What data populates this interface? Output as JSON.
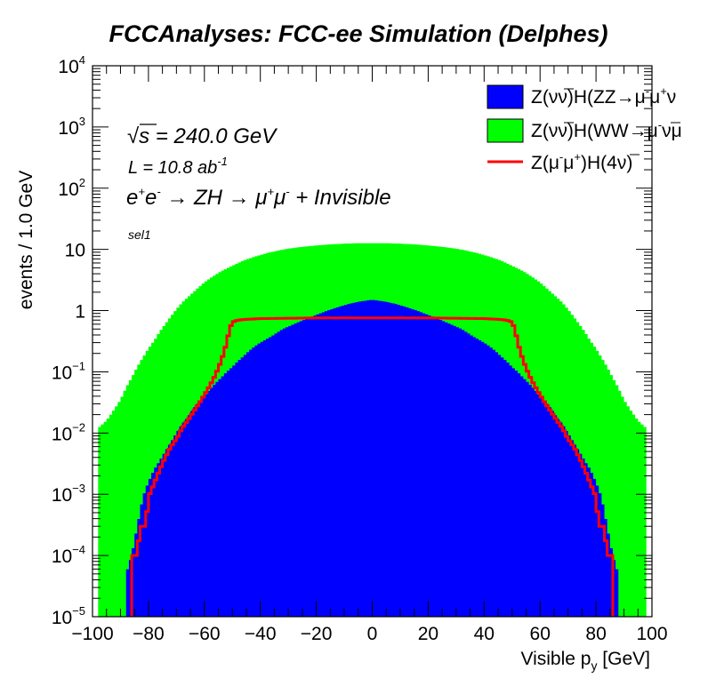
{
  "chart_data": {
    "type": "histogram",
    "title": "FCCAnalyses: FCC-ee Simulation (Delphes)",
    "xlabel": {
      "main": "Visible p",
      "sub": "y",
      "unit": " [GeV]"
    },
    "ylabel": "events / 1.0 GeV",
    "xlim": [
      -100,
      100
    ],
    "ylim": [
      1e-05,
      10000
    ],
    "yscale": "log",
    "bin_width": 1.0,
    "x_ticks": [
      -100,
      -80,
      -60,
      -40,
      -20,
      0,
      20,
      40,
      60,
      80,
      100
    ],
    "x_tick_labels": [
      "−100",
      "−80",
      "−60",
      "−40",
      "−20",
      "0",
      "20",
      "40",
      "60",
      "80",
      "100"
    ],
    "y_tick_labels": [
      {
        "value": 1e-05,
        "base": "10",
        "exp": "−5"
      },
      {
        "value": 0.0001,
        "base": "10",
        "exp": "−4"
      },
      {
        "value": 0.001,
        "base": "10",
        "exp": "−3"
      },
      {
        "value": 0.01,
        "base": "10",
        "exp": "−2"
      },
      {
        "value": 0.1,
        "base": "10",
        "exp": "−1"
      },
      {
        "value": 1,
        "base": "1",
        "exp": ""
      },
      {
        "value": 10,
        "base": "10",
        "exp": ""
      },
      {
        "value": 100,
        "base": "10",
        "exp": "2"
      },
      {
        "value": 1000,
        "base": "10",
        "exp": "3"
      },
      {
        "value": 10000,
        "base": "10",
        "exp": "4"
      }
    ],
    "annotations": {
      "sqrt_s": {
        "root_symbol": "√",
        "s": "s",
        "rest": " = 240.0 GeV"
      },
      "lumi": {
        "main": "L = 10.8 ab",
        "exp": "-1"
      },
      "process": {
        "e1": "e",
        "e1sup": "+",
        "e2": "e",
        "e2sup": "-",
        "arrow1": " → ZH → ",
        "mu1": "μ",
        "mu1sup": "+",
        "mu2": "μ",
        "mu2sup": "-",
        "tail": " + Invisible"
      },
      "selection": "sel1"
    },
    "legend_position": "top-right",
    "series": [
      {
        "name": "Z(νν̅)H(WW→μ̅ν̅μ",
        "legend": {
          "a": "Z(ν",
          "b": "ν",
          "c": ")H(WW",
          "d": "→μ",
          "e": "ν",
          "f": "μ",
          "bar_b": true,
          "bar_e": true,
          "sup_d": "-"
        },
        "style": "filled",
        "color": "#00ff00",
        "stack_order": 2,
        "points": [
          [
            -98,
            0.012
          ],
          [
            -95,
            0.016
          ],
          [
            -92,
            0.025
          ],
          [
            -90,
            0.035
          ],
          [
            -88,
            0.055
          ],
          [
            -86,
            0.08
          ],
          [
            -84,
            0.12
          ],
          [
            -82,
            0.17
          ],
          [
            -80,
            0.24
          ],
          [
            -78,
            0.32
          ],
          [
            -76,
            0.45
          ],
          [
            -74,
            0.6
          ],
          [
            -72,
            0.8
          ],
          [
            -70,
            1.05
          ],
          [
            -68,
            1.35
          ],
          [
            -65,
            1.8
          ],
          [
            -62,
            2.4
          ],
          [
            -60,
            2.9
          ],
          [
            -57,
            3.6
          ],
          [
            -54,
            4.4
          ],
          [
            -50,
            5.4
          ],
          [
            -46,
            6.6
          ],
          [
            -42,
            7.6
          ],
          [
            -38,
            8.6
          ],
          [
            -34,
            9.5
          ],
          [
            -30,
            10.3
          ],
          [
            -25,
            11.0
          ],
          [
            -20,
            11.6
          ],
          [
            -15,
            12.1
          ],
          [
            -10,
            12.4
          ],
          [
            -5,
            12.6
          ],
          [
            0,
            12.6
          ],
          [
            5,
            12.6
          ],
          [
            10,
            12.4
          ],
          [
            15,
            12.1
          ],
          [
            20,
            11.6
          ],
          [
            25,
            11.0
          ],
          [
            30,
            10.3
          ],
          [
            34,
            9.5
          ],
          [
            38,
            8.6
          ],
          [
            42,
            7.6
          ],
          [
            46,
            6.6
          ],
          [
            50,
            5.4
          ],
          [
            54,
            4.4
          ],
          [
            57,
            3.6
          ],
          [
            60,
            2.9
          ],
          [
            62,
            2.4
          ],
          [
            65,
            1.8
          ],
          [
            68,
            1.35
          ],
          [
            70,
            1.05
          ],
          [
            72,
            0.8
          ],
          [
            74,
            0.6
          ],
          [
            76,
            0.45
          ],
          [
            78,
            0.32
          ],
          [
            80,
            0.24
          ],
          [
            82,
            0.17
          ],
          [
            84,
            0.12
          ],
          [
            86,
            0.08
          ],
          [
            88,
            0.055
          ],
          [
            90,
            0.035
          ],
          [
            92,
            0.025
          ],
          [
            95,
            0.016
          ],
          [
            98,
            0.012
          ]
        ]
      },
      {
        "name": "Z(νν̅)H(ZZ→μ̅μ⁺ν",
        "legend": {
          "a": "Z(ν",
          "b": "ν",
          "c": ")H(ZZ",
          "d": "→μ",
          "e": "μ",
          "f": "ν",
          "bar_b": true,
          "sup_d": "-",
          "sup_e": "+"
        },
        "style": "filled",
        "color": "#0000ff",
        "stack_order": 1,
        "points": [
          [
            -88,
            5e-05
          ],
          [
            -86,
            0.0001
          ],
          [
            -84,
            0.0003
          ],
          [
            -82,
            0.0009
          ],
          [
            -80,
            0.0016
          ],
          [
            -78,
            0.0025
          ],
          [
            -76,
            0.0035
          ],
          [
            -74,
            0.005
          ],
          [
            -72,
            0.007
          ],
          [
            -70,
            0.01
          ],
          [
            -68,
            0.014
          ],
          [
            -66,
            0.018
          ],
          [
            -64,
            0.025
          ],
          [
            -62,
            0.032
          ],
          [
            -60,
            0.04
          ],
          [
            -58,
            0.052
          ],
          [
            -56,
            0.065
          ],
          [
            -54,
            0.08
          ],
          [
            -52,
            0.1
          ],
          [
            -50,
            0.12
          ],
          [
            -48,
            0.15
          ],
          [
            -46,
            0.18
          ],
          [
            -44,
            0.22
          ],
          [
            -42,
            0.26
          ],
          [
            -40,
            0.3
          ],
          [
            -36,
            0.38
          ],
          [
            -32,
            0.5
          ],
          [
            -28,
            0.6
          ],
          [
            -24,
            0.72
          ],
          [
            -20,
            0.85
          ],
          [
            -16,
            1.0
          ],
          [
            -12,
            1.15
          ],
          [
            -8,
            1.3
          ],
          [
            -4,
            1.42
          ],
          [
            0,
            1.5
          ],
          [
            4,
            1.42
          ],
          [
            8,
            1.3
          ],
          [
            12,
            1.15
          ],
          [
            16,
            1.0
          ],
          [
            20,
            0.85
          ],
          [
            24,
            0.72
          ],
          [
            28,
            0.6
          ],
          [
            32,
            0.5
          ],
          [
            36,
            0.38
          ],
          [
            40,
            0.3
          ],
          [
            42,
            0.26
          ],
          [
            44,
            0.22
          ],
          [
            46,
            0.18
          ],
          [
            48,
            0.15
          ],
          [
            50,
            0.12
          ],
          [
            52,
            0.1
          ],
          [
            54,
            0.08
          ],
          [
            56,
            0.065
          ],
          [
            58,
            0.052
          ],
          [
            60,
            0.04
          ],
          [
            62,
            0.032
          ],
          [
            64,
            0.025
          ],
          [
            66,
            0.018
          ],
          [
            68,
            0.014
          ],
          [
            70,
            0.01
          ],
          [
            72,
            0.007
          ],
          [
            74,
            0.005
          ],
          [
            76,
            0.0035
          ],
          [
            78,
            0.0025
          ],
          [
            80,
            0.0016
          ],
          [
            82,
            0.0009
          ],
          [
            84,
            0.0003
          ],
          [
            86,
            0.0001
          ],
          [
            88,
            5e-05
          ]
        ]
      },
      {
        "name": "Z(μ̅μ⁺)H(4ν̅)",
        "legend": {
          "a": "Z(μ",
          "b": "μ",
          "c": ")H(4",
          "d": "ν",
          "e": ")",
          "sup_a": "-",
          "sup_b": "+",
          "bar_d": true
        },
        "style": "line",
        "color": "#ff0000",
        "points": [
          [
            -88,
            8e-06
          ],
          [
            -86,
            8e-06
          ],
          [
            -85.5,
            0.0001
          ],
          [
            -84,
            0.0001
          ],
          [
            -83,
            0.0003
          ],
          [
            -81,
            0.0003
          ],
          [
            -80,
            0.0009
          ],
          [
            -78,
            0.0015
          ],
          [
            -76,
            0.0025
          ],
          [
            -74,
            0.004
          ],
          [
            -72,
            0.006
          ],
          [
            -70,
            0.008
          ],
          [
            -68,
            0.012
          ],
          [
            -66,
            0.016
          ],
          [
            -64,
            0.022
          ],
          [
            -62,
            0.03
          ],
          [
            -60,
            0.042
          ],
          [
            -58,
            0.06
          ],
          [
            -56,
            0.09
          ],
          [
            -54,
            0.15
          ],
          [
            -52,
            0.3
          ],
          [
            -51,
            0.5
          ],
          [
            -50,
            0.65
          ],
          [
            -48,
            0.7
          ],
          [
            -45,
            0.72
          ],
          [
            -40,
            0.74
          ],
          [
            -30,
            0.75
          ],
          [
            -20,
            0.76
          ],
          [
            -10,
            0.76
          ],
          [
            0,
            0.76
          ],
          [
            10,
            0.76
          ],
          [
            20,
            0.76
          ],
          [
            30,
            0.75
          ],
          [
            40,
            0.74
          ],
          [
            45,
            0.72
          ],
          [
            48,
            0.7
          ],
          [
            50,
            0.65
          ],
          [
            51,
            0.5
          ],
          [
            52,
            0.3
          ],
          [
            54,
            0.15
          ],
          [
            56,
            0.09
          ],
          [
            58,
            0.06
          ],
          [
            60,
            0.042
          ],
          [
            62,
            0.03
          ],
          [
            64,
            0.022
          ],
          [
            66,
            0.016
          ],
          [
            68,
            0.012
          ],
          [
            70,
            0.008
          ],
          [
            72,
            0.006
          ],
          [
            74,
            0.004
          ],
          [
            76,
            0.0025
          ],
          [
            78,
            0.0015
          ],
          [
            80,
            0.0009
          ],
          [
            81,
            0.0003
          ],
          [
            83,
            0.0003
          ],
          [
            84,
            0.0001
          ],
          [
            85.5,
            0.0001
          ],
          [
            86,
            8e-06
          ],
          [
            88,
            8e-06
          ]
        ]
      }
    ]
  }
}
